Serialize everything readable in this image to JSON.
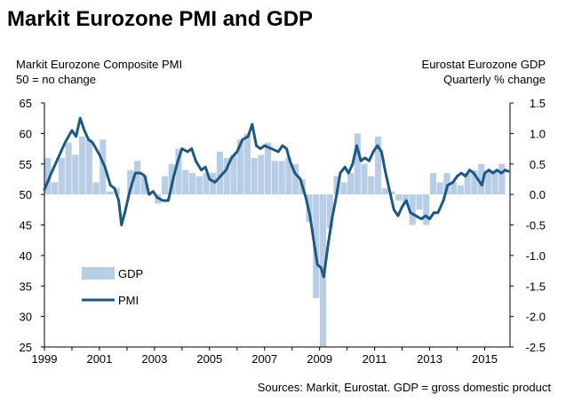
{
  "chart_data": {
    "type": "bar+line",
    "title": "Markit Eurozone PMI and GDP",
    "left_axis": {
      "label_line1": "Markit Eurozone Composite PMI",
      "label_line2": "50 = no change",
      "ylim": [
        25,
        65
      ],
      "ticks": [
        "65",
        "60",
        "55",
        "50",
        "45",
        "40",
        "35",
        "30",
        "25"
      ]
    },
    "right_axis": {
      "label_line1": "Eurostat Eurozone GDP",
      "label_line2": "Quarterly % change",
      "ylim": [
        -2.5,
        1.5
      ],
      "ticks": [
        "1.5",
        "1.0",
        "0.5",
        "0.0",
        "-0.5",
        "-1.0",
        "-1.5",
        "-2.0",
        "-2.5"
      ]
    },
    "x_axis": {
      "range": [
        1999.0,
        2015.92
      ],
      "tick_labels": [
        "1999",
        "2001",
        "2003",
        "2005",
        "2007",
        "2009",
        "2011",
        "2013",
        "2015"
      ]
    },
    "legend": {
      "gdp_label": "GDP",
      "pmi_label": "PMI"
    },
    "source": "Sources: Markit, Eurostat. GDP = gross domestic product",
    "colors": {
      "gdp_bar": "#b8cde6",
      "pmi_line": "#1f5783",
      "axis": "#000000"
    },
    "series": [
      {
        "name": "GDP",
        "axis": "right",
        "quarter_start": 1999.0,
        "values": [
          0.6,
          0.2,
          0.6,
          0.85,
          0.65,
          0.95,
          0.9,
          0.2,
          0.9,
          0.05,
          0.1,
          0.0,
          0.4,
          0.55,
          0.3,
          0.0,
          -0.15,
          0.3,
          0.5,
          0.75,
          0.4,
          0.35,
          0.3,
          0.35,
          0.35,
          0.7,
          0.6,
          0.65,
          0.9,
          1.0,
          0.6,
          0.65,
          0.85,
          0.55,
          0.55,
          0.6,
          0.5,
          0.25,
          -0.45,
          -1.7,
          -2.6,
          -0.55,
          0.3,
          0.2,
          0.35,
          1.0,
          0.5,
          0.3,
          0.95,
          0.1,
          0.05,
          -0.1,
          -0.15,
          -0.5,
          -0.25,
          -0.5,
          0.35,
          0.2,
          0.35,
          0.2,
          0.15,
          0.35,
          0.4,
          0.5,
          0.4,
          0.4,
          0.5
        ]
      },
      {
        "name": "PMI",
        "axis": "left",
        "points": [
          [
            1999.0,
            50.8
          ],
          [
            1999.25,
            53.5
          ],
          [
            1999.5,
            56.0
          ],
          [
            1999.75,
            58.5
          ],
          [
            2000.0,
            60.5
          ],
          [
            2000.15,
            59.5
          ],
          [
            2000.3,
            62.5
          ],
          [
            2000.45,
            60.5
          ],
          [
            2000.6,
            59.0
          ],
          [
            2000.75,
            58.5
          ],
          [
            2001.0,
            56.5
          ],
          [
            2001.2,
            54.5
          ],
          [
            2001.4,
            51.5
          ],
          [
            2001.55,
            51.0
          ],
          [
            2001.7,
            49.0
          ],
          [
            2001.8,
            45.0
          ],
          [
            2001.92,
            47.0
          ],
          [
            2002.1,
            50.5
          ],
          [
            2002.3,
            53.5
          ],
          [
            2002.5,
            53.5
          ],
          [
            2002.65,
            53.0
          ],
          [
            2002.8,
            50.0
          ],
          [
            2002.95,
            50.5
          ],
          [
            2003.1,
            49.5
          ],
          [
            2003.3,
            49.0
          ],
          [
            2003.5,
            49.0
          ],
          [
            2003.7,
            53.0
          ],
          [
            2003.85,
            55.5
          ],
          [
            2004.0,
            57.5
          ],
          [
            2004.2,
            57.0
          ],
          [
            2004.35,
            57.5
          ],
          [
            2004.5,
            55.5
          ],
          [
            2004.7,
            54.0
          ],
          [
            2004.85,
            54.5
          ],
          [
            2005.0,
            52.5
          ],
          [
            2005.2,
            52.0
          ],
          [
            2005.4,
            53.0
          ],
          [
            2005.6,
            54.0
          ],
          [
            2005.8,
            56.0
          ],
          [
            2006.0,
            57.0
          ],
          [
            2006.2,
            59.0
          ],
          [
            2006.4,
            59.5
          ],
          [
            2006.55,
            61.5
          ],
          [
            2006.7,
            58.0
          ],
          [
            2006.85,
            57.5
          ],
          [
            2007.0,
            58.0
          ],
          [
            2007.25,
            57.5
          ],
          [
            2007.5,
            57.0
          ],
          [
            2007.65,
            58.0
          ],
          [
            2007.8,
            57.5
          ],
          [
            2007.92,
            55.5
          ],
          [
            2008.1,
            53.5
          ],
          [
            2008.3,
            52.5
          ],
          [
            2008.5,
            49.5
          ],
          [
            2008.65,
            46.5
          ],
          [
            2008.8,
            42.0
          ],
          [
            2008.92,
            38.5
          ],
          [
            2009.05,
            38.0
          ],
          [
            2009.15,
            36.5
          ],
          [
            2009.3,
            41.5
          ],
          [
            2009.45,
            46.0
          ],
          [
            2009.6,
            49.5
          ],
          [
            2009.75,
            53.5
          ],
          [
            2009.92,
            54.5
          ],
          [
            2010.05,
            53.5
          ],
          [
            2010.2,
            55.0
          ],
          [
            2010.35,
            58.0
          ],
          [
            2010.5,
            55.5
          ],
          [
            2010.65,
            56.0
          ],
          [
            2010.8,
            55.5
          ],
          [
            2010.95,
            57.0
          ],
          [
            2011.1,
            58.0
          ],
          [
            2011.25,
            57.0
          ],
          [
            2011.4,
            53.5
          ],
          [
            2011.55,
            50.5
          ],
          [
            2011.7,
            47.5
          ],
          [
            2011.85,
            46.5
          ],
          [
            2012.0,
            48.0
          ],
          [
            2012.15,
            49.0
          ],
          [
            2012.3,
            47.0
          ],
          [
            2012.5,
            46.5
          ],
          [
            2012.7,
            46.0
          ],
          [
            2012.85,
            46.5
          ],
          [
            2013.0,
            46.0
          ],
          [
            2013.15,
            47.0
          ],
          [
            2013.3,
            47.0
          ],
          [
            2013.5,
            49.0
          ],
          [
            2013.65,
            51.5
          ],
          [
            2013.85,
            52.0
          ],
          [
            2014.0,
            53.0
          ],
          [
            2014.15,
            53.5
          ],
          [
            2014.3,
            53.0
          ],
          [
            2014.45,
            54.0
          ],
          [
            2014.6,
            53.5
          ],
          [
            2014.75,
            52.5
          ],
          [
            2014.9,
            51.5
          ],
          [
            2015.0,
            53.5
          ],
          [
            2015.15,
            54.0
          ],
          [
            2015.3,
            53.5
          ],
          [
            2015.45,
            54.0
          ],
          [
            2015.6,
            53.5
          ],
          [
            2015.75,
            54.0
          ],
          [
            2015.85,
            53.8
          ]
        ]
      }
    ]
  }
}
